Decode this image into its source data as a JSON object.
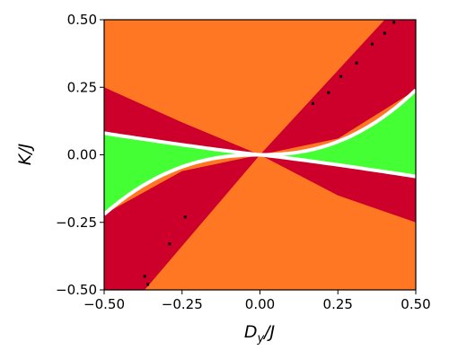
{
  "chart_data": {
    "type": "heatmap",
    "title": "",
    "xlabel_main": "D",
    "xlabel_sub": "y",
    "xlabel_tail": "/J",
    "ylabel": "K/J",
    "xlim": [
      -0.5,
      0.5
    ],
    "ylim": [
      -0.5,
      0.5
    ],
    "grid": false,
    "x_ticks": [
      -0.5,
      -0.25,
      0.0,
      0.25,
      0.5
    ],
    "y_ticks": [
      -0.5,
      -0.25,
      0.0,
      0.25,
      0.5
    ],
    "x_tick_labels": [
      "−0.50",
      "−0.25",
      "0.00",
      "0.25",
      "0.50"
    ],
    "y_tick_labels": [
      "−0.50",
      "−0.25",
      "0.00",
      "0.25",
      "0.50"
    ],
    "colors": {
      "orange": "#FF7722",
      "red": "#CC002A",
      "green": "#44FF33",
      "black": "#000000",
      "boundary": "#FFFFFF"
    },
    "regions": [
      {
        "color": "orange",
        "description_x_y": "|K/J| > 0.74 |Dy/J| approximately (top and bottom wedges)"
      },
      {
        "color": "red",
        "region": "0.5 |Dy/J| < |K/J| boundary band between orange and boundary curves"
      },
      {
        "color": "green",
        "region": "near K/J = 0, between the two white boundary curves"
      }
    ],
    "region_boundaries": {
      "orange_red_slope": 0.74,
      "orange_red_slope_left_edge": 0.5,
      "boundary_curves": [
        {
          "name": "upper",
          "points": [
            [
              -0.5,
              0.08
            ],
            [
              -0.25,
              0.035
            ],
            [
              0.0,
              0.0
            ],
            [
              0.25,
              0.06
            ],
            [
              0.5,
              0.24
            ]
          ]
        },
        {
          "name": "lower",
          "points": [
            [
              -0.5,
              -0.22
            ],
            [
              -0.25,
              -0.06
            ],
            [
              0.0,
              0.0
            ],
            [
              0.25,
              -0.035
            ],
            [
              0.5,
              -0.08
            ]
          ]
        }
      ]
    },
    "black_specks": [
      [
        -0.37,
        -0.45
      ],
      [
        -0.36,
        -0.48
      ],
      [
        -0.29,
        -0.33
      ],
      [
        -0.24,
        -0.23
      ],
      [
        0.17,
        0.19
      ],
      [
        0.22,
        0.23
      ],
      [
        0.26,
        0.29
      ],
      [
        0.31,
        0.34
      ],
      [
        0.36,
        0.41
      ],
      [
        0.4,
        0.45
      ],
      [
        0.43,
        0.49
      ]
    ]
  }
}
